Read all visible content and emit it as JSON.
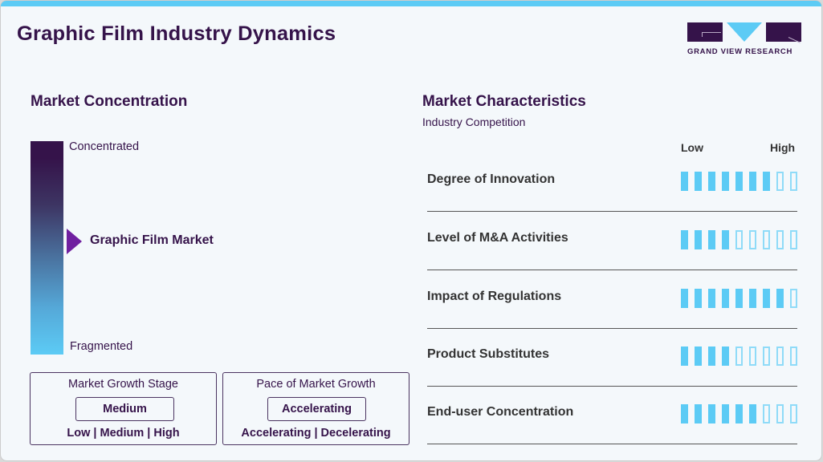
{
  "header": {
    "title": "Graphic Film Industry Dynamics",
    "logo_text": "GRAND VIEW RESEARCH"
  },
  "colors": {
    "primary": "#35134a",
    "accent": "#5ccbf5",
    "marker": "#7020a0",
    "background": "#f4f8fb"
  },
  "market_concentration": {
    "title": "Market Concentration",
    "top_label": "Concentrated",
    "bottom_label": "Fragmented",
    "marker_label": "Graphic Film Market",
    "marker_position_pct": 47
  },
  "growth_stage": {
    "title": "Market Growth Stage",
    "selected": "Medium",
    "options": [
      "Low",
      "Medium",
      "High"
    ],
    "options_text": "Low | Medium | High"
  },
  "growth_pace": {
    "title": "Pace of Market Growth",
    "selected": "Accelerating",
    "options": [
      "Accelerating",
      "Decelerating"
    ],
    "options_text": "Accelerating | Decelerating"
  },
  "market_characteristics": {
    "title": "Market Characteristics",
    "subtitle": "Industry Competition",
    "scale_low": "Low",
    "scale_high": "High",
    "max_rating": 9,
    "rows": [
      {
        "label": "Degree of Innovation",
        "rating": 7
      },
      {
        "label": "Level of M&A Activities",
        "rating": 4
      },
      {
        "label": "Impact of Regulations",
        "rating": 8
      },
      {
        "label": "Product Substitutes",
        "rating": 4
      },
      {
        "label": "End-user Concentration",
        "rating": 6
      }
    ]
  }
}
